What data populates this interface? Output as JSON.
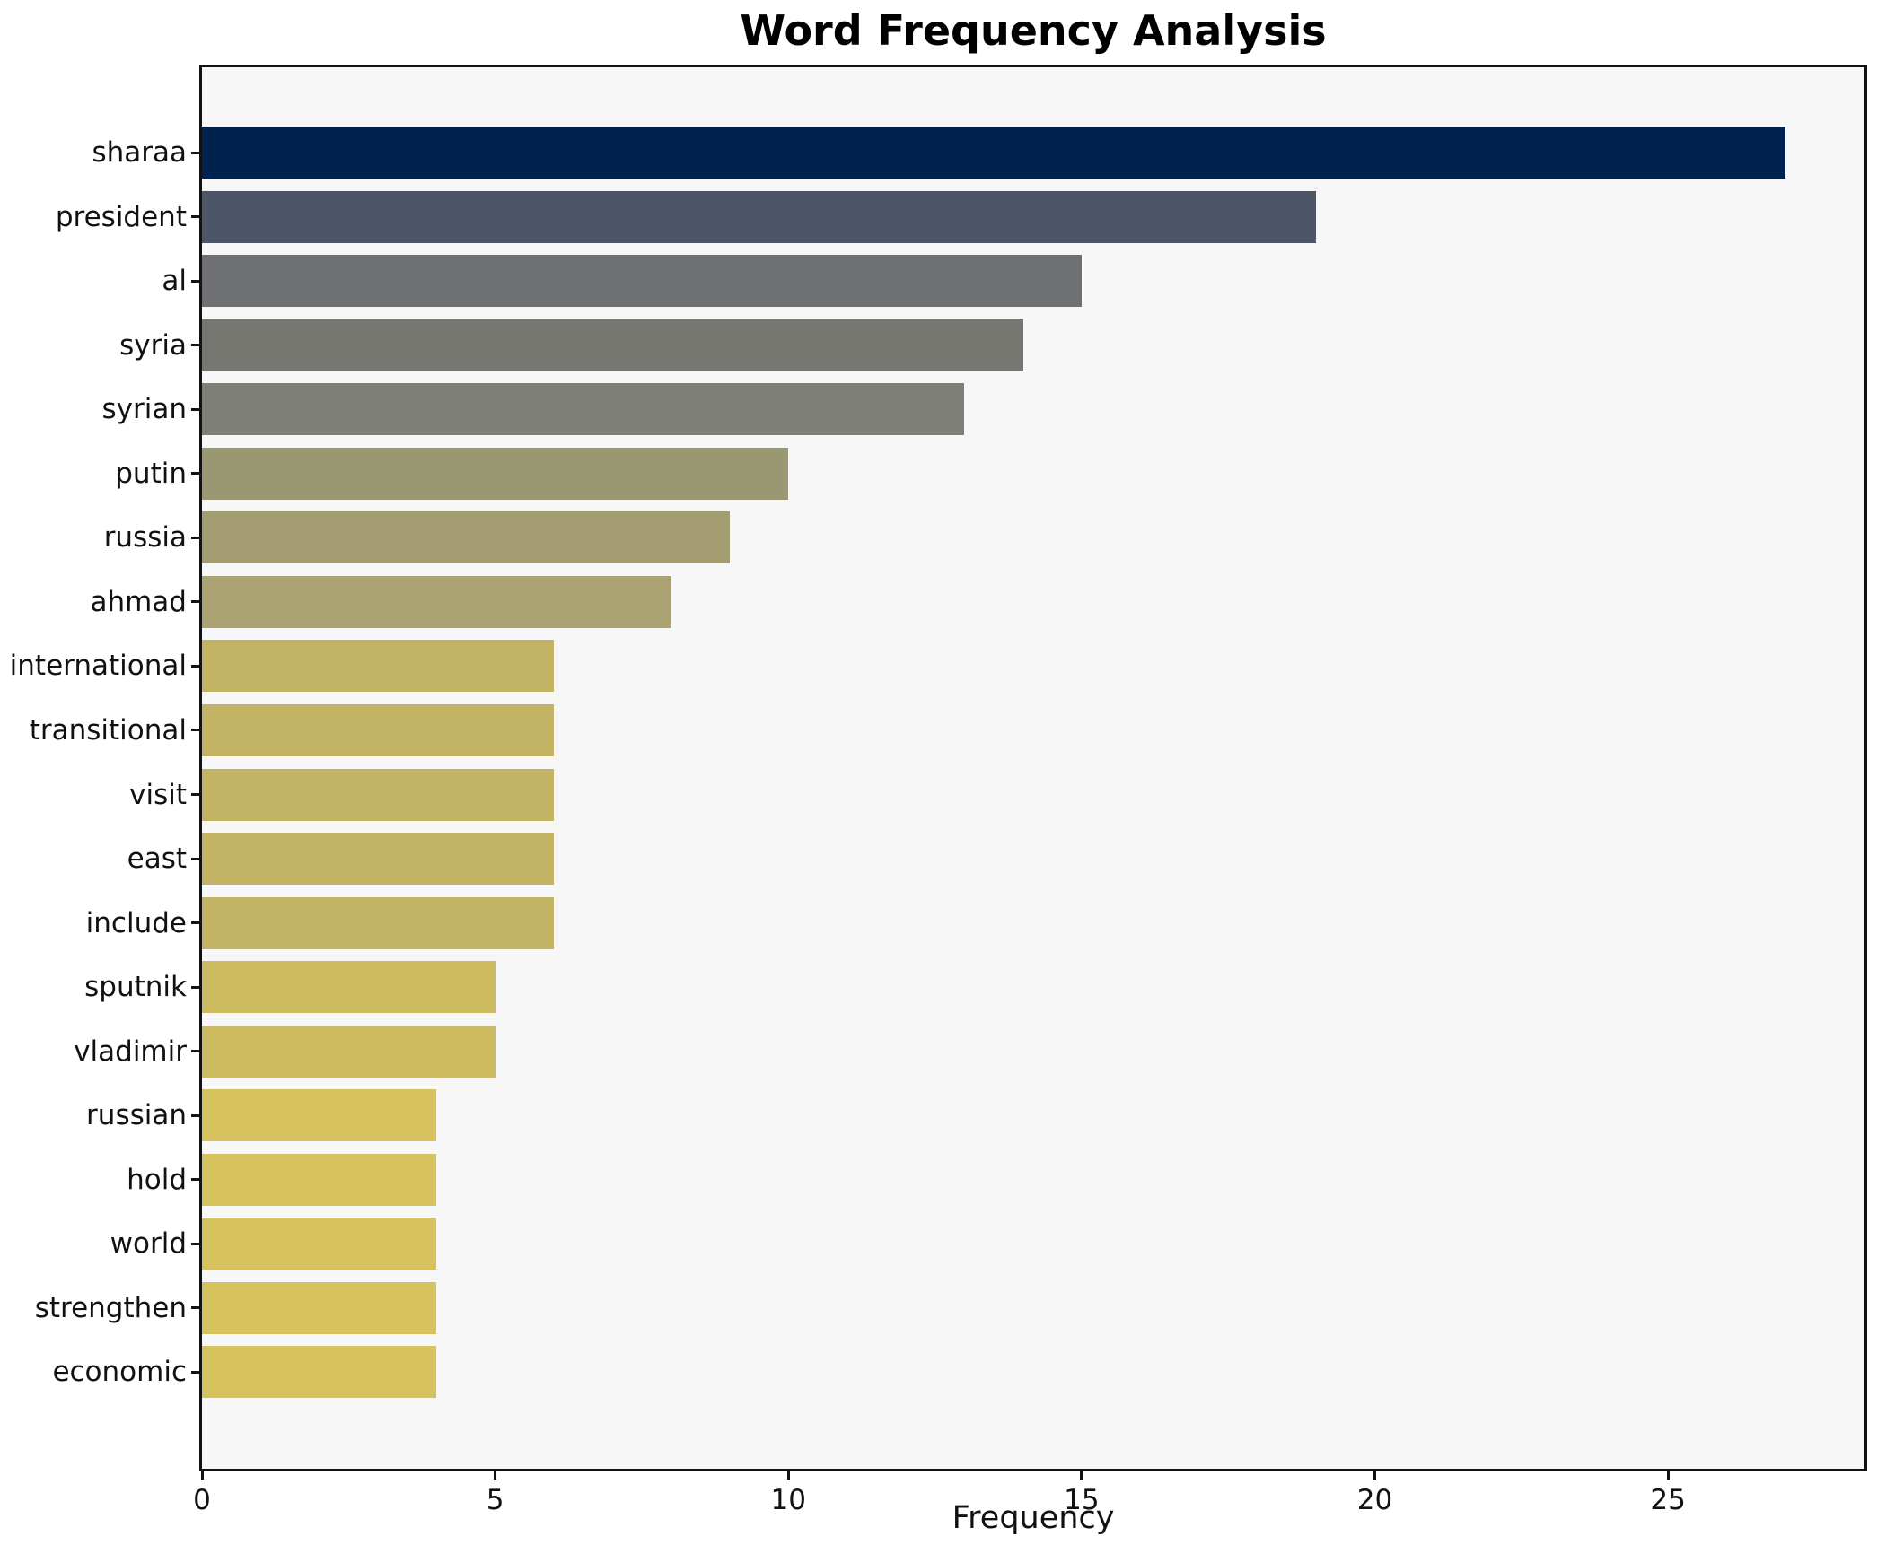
{
  "chart_data": {
    "type": "bar",
    "orientation": "horizontal",
    "title": "Word Frequency Analysis",
    "xlabel": "Frequency",
    "ylabel": "",
    "categories": [
      "sharaa",
      "president",
      "al",
      "syria",
      "syrian",
      "putin",
      "russia",
      "ahmad",
      "international",
      "transitional",
      "visit",
      "east",
      "include",
      "sputnik",
      "vladimir",
      "russian",
      "hold",
      "world",
      "strengthen",
      "economic"
    ],
    "values": [
      27,
      19,
      15,
      14,
      13,
      10,
      9,
      8,
      6,
      6,
      6,
      6,
      6,
      5,
      5,
      4,
      4,
      4,
      4,
      4
    ],
    "bar_colors": [
      "#00224e",
      "#4d5568",
      "#6e7073",
      "#777772",
      "#7f8078",
      "#999872",
      "#a49d71",
      "#aca372",
      "#c3b365",
      "#c3b365",
      "#c3b365",
      "#c3b365",
      "#c3b365",
      "#ccbb60",
      "#ccbb60",
      "#d6c35e",
      "#d6c35e",
      "#d6c35e",
      "#d6c35e",
      "#d6c35e"
    ],
    "xticks": [
      0,
      5,
      10,
      15,
      20,
      25
    ],
    "xlim": [
      0,
      28.35
    ],
    "grid": false,
    "legend": null,
    "plot_background": "#f7f7f7",
    "figure_background": "#ffffff",
    "spine_color": "#121212",
    "colormap": "cividis"
  }
}
